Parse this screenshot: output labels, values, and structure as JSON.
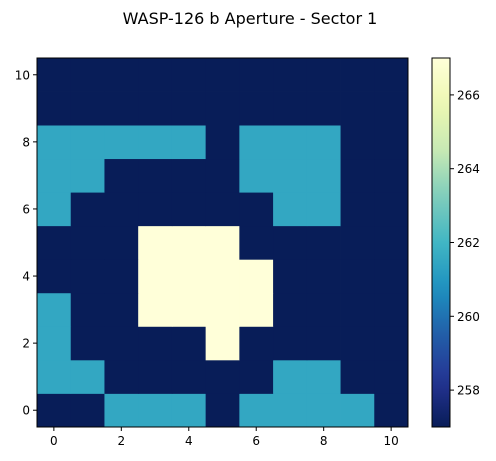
{
  "chart_data": {
    "type": "heatmap",
    "title": "WASP-126 b Aperture - Sector 1",
    "xlabel": "",
    "ylabel": "",
    "origin": "lower",
    "colormap": "YlGnBu",
    "x": [
      0,
      1,
      2,
      3,
      4,
      5,
      6,
      7,
      8,
      9,
      10
    ],
    "y": [
      0,
      1,
      2,
      3,
      4,
      5,
      6,
      7,
      8,
      9,
      10
    ],
    "xlim": [
      -0.5,
      10.5
    ],
    "ylim": [
      -0.5,
      10.5
    ],
    "xticks": [
      "0",
      "2",
      "4",
      "6",
      "8",
      "10"
    ],
    "yticks": [
      "0",
      "2",
      "4",
      "6",
      "8",
      "10"
    ],
    "colorbar_range": [
      257,
      267
    ],
    "colorbar_ticks": [
      "258",
      "260",
      "262",
      "264",
      "266"
    ],
    "grid": false,
    "values": [
      [
        257,
        257,
        261.5,
        261.5,
        261.5,
        257,
        261.5,
        261.5,
        261.5,
        261.5,
        257
      ],
      [
        261.5,
        261.5,
        257,
        257,
        257,
        257,
        257,
        261.5,
        261.5,
        257,
        257
      ],
      [
        261.5,
        257,
        257,
        257,
        257,
        267,
        257,
        257,
        257,
        257,
        257
      ],
      [
        261.5,
        257,
        257,
        267,
        267,
        267,
        267,
        257,
        257,
        257,
        257
      ],
      [
        257,
        257,
        257,
        267,
        267,
        267,
        267,
        257,
        257,
        257,
        257
      ],
      [
        257,
        257,
        257,
        267,
        267,
        267,
        257,
        257,
        257,
        257,
        257
      ],
      [
        261.5,
        257,
        257,
        257,
        257,
        257,
        257,
        261.5,
        261.5,
        257,
        257
      ],
      [
        261.5,
        261.5,
        257,
        257,
        257,
        257,
        261.5,
        261.5,
        261.5,
        257,
        257
      ],
      [
        261.5,
        261.5,
        261.5,
        261.5,
        261.5,
        257,
        261.5,
        261.5,
        261.5,
        257,
        257
      ],
      [
        257,
        257,
        257,
        257,
        257,
        257,
        257,
        257,
        257,
        257,
        257
      ],
      [
        257,
        257,
        257,
        257,
        257,
        257,
        257,
        257,
        257,
        257,
        257
      ]
    ]
  }
}
